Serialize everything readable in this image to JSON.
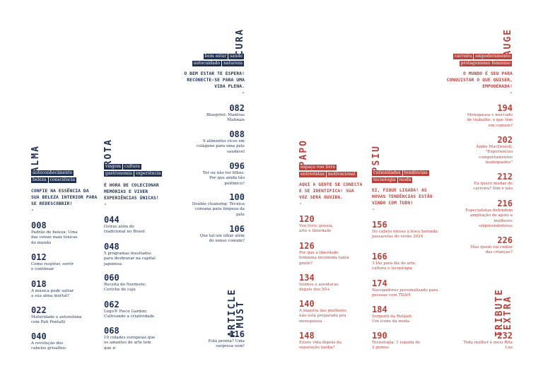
{
  "sections": {
    "alma": {
      "title": "ALMA",
      "tags_row1": [
        "autoconhecimento"
      ],
      "tags_row2": [
        "beleza",
        "consciência"
      ],
      "intro": "CONFIE NA ESSÊNCIA DA SUA BELEZA INTERIOR PARA SE REDESCOBRIR!",
      "dash": "-",
      "entries": [
        {
          "num": "008",
          "text": "Padrão de beleza: Uma das coisas mais tóxicas do mundo"
        },
        {
          "num": "012",
          "text": "Como respirar, sorrir e continuar"
        },
        {
          "num": "018",
          "text": "A música pode salvar a sua alma mortal?"
        },
        {
          "num": "022",
          "text": "Maturidade e autoestima com Pati Pontalti"
        },
        {
          "num": "040",
          "text": "A revolução dos cabelos grisalhos"
        }
      ]
    },
    "rota": {
      "title": "ROTA",
      "tags_row1": [
        "viagem",
        "cultura"
      ],
      "tags_row2": [
        "gastronomia",
        "experiência"
      ],
      "intro": "É HORA DE COLECIONAR MEMÓRIAS E VIVER EXPERIÊNCIAS ÚNICAS!",
      "dash": "-",
      "entries": [
        {
          "num": "044",
          "text": "Ostras além do tradicional no Brasil"
        },
        {
          "num": "048",
          "text": "5 programas inusitados para desbravar na capital japonesa"
        },
        {
          "num": "060",
          "text": "Receita do Nordeste: Ceviche de caju"
        },
        {
          "num": "062",
          "text": "Lego® Piece Garden: Cultivando a criatividade"
        },
        {
          "num": "068",
          "text": "10 cidades europeias que os amantes de arte tem que ir"
        }
      ]
    },
    "cura": {
      "title": "CURA",
      "tags_row1": [
        "bem estar",
        "saúde"
      ],
      "tags_row2": [
        "autocuidado",
        "natureza"
      ],
      "intro": "O BEM ESTAR TE ESPERA! RECONECTE-SE PARA UMA VIDA PLENA.",
      "dash": "-",
      "entries": [
        {
          "num": "082",
          "text": "Blueprint: Mantras Matinais"
        },
        {
          "num": "088",
          "text": "9 alimentos ricos em colágeno para uma pele saudável"
        },
        {
          "num": "096",
          "text": "Ter ou não ter filhos: Por que ainda tão polêmico?"
        },
        {
          "num": "100",
          "text": "Double cleansing: Técnica coreana para limpeza da pele"
        },
        {
          "num": "106",
          "text": "Que tal um olhar além do senso comum?"
        }
      ]
    },
    "must": {
      "title_line1": "MUST",
      "title_line2": "ARTICLE",
      "entry": {
        "num": "116",
        "text": "Está pronta? Uma surpresa vem!"
      }
    },
    "papo": {
      "title": "PAPO",
      "tags_row1": [
        "espaço voo livre"
      ],
      "tags_row2": [
        "entrevistas",
        "motivacional"
      ],
      "intro": "AQUI A GENTE SE CONECTA E SE IDENTIFICA! SUA VOZ SERÁ OUVIDA.",
      "dash": "-",
      "entries": [
        {
          "num": "120",
          "text": "Voo livre: poesia, arte e liberdade"
        },
        {
          "num": "126",
          "text": "Por que a liberdade feminina incomoda tanta gente?"
        },
        {
          "num": "134",
          "text": "Sonhos e aventuras depois dos 50+"
        },
        {
          "num": "140",
          "text": "A maioria das mulheres não está preparada pra menopausa"
        },
        {
          "num": "148",
          "text": "Existe vida depois da separação tardia?"
        }
      ]
    },
    "psiu": {
      "title": "PSIU",
      "tags_row1": [
        "curiosidades",
        "tendências"
      ],
      "tags_row2": [
        "tecnologia",
        "moda"
      ],
      "intro": "EI, FIQUE LIGADA! AS NOVAS TENDÊNCIAS ESTÃO VINDO COM TUDO!",
      "dash": "-",
      "entries": [
        {
          "num": "156",
          "text": "Do cabelo oleoso à boca borrada: passarelas do verão 2024"
        },
        {
          "num": "166",
          "text": "3 IAs para fãs de arte, cultura e tecnologia"
        },
        {
          "num": "174",
          "text": "Navegadores personalizado para pessoas com TDAH"
        },
        {
          "num": "184",
          "text": "Serpenti da Bulgari: Um ícone da moda"
        },
        {
          "num": "190",
          "text": "Tecnologia: 1 espada de 2 gumes"
        }
      ]
    },
    "auge": {
      "title": "AUGE",
      "tags_row1": [
        "carreira",
        "empoderamento"
      ],
      "tags_row2": [
        "protagonismo feminino"
      ],
      "intro": "O MUNDO É SEU PARA CONQUISTAR O QUE QUISER, EMPODERADA!",
      "dash": "-",
      "entries": [
        {
          "num": "194",
          "text": "Menopausa e mercado de trabalho: o que têm em comum?"
        },
        {
          "num": "202",
          "text": "Andie MacDowell: \"Experienciei comportamentos inadequados\""
        },
        {
          "num": "212",
          "text": "Eu quero mudar de carreira? Sim e não"
        },
        {
          "num": "216",
          "text": "Especialistas defendem ampliação de apoio a mulheres empreendedoras"
        },
        {
          "num": "226",
          "text": "Mas quem vai cuidar das crianças?"
        }
      ]
    },
    "extra": {
      "title_line1": "EXTRA",
      "title_line2": "TRIBUTE",
      "entry": {
        "num": "232",
        "text": "Toda mulher é meio Rita Lee"
      }
    }
  }
}
